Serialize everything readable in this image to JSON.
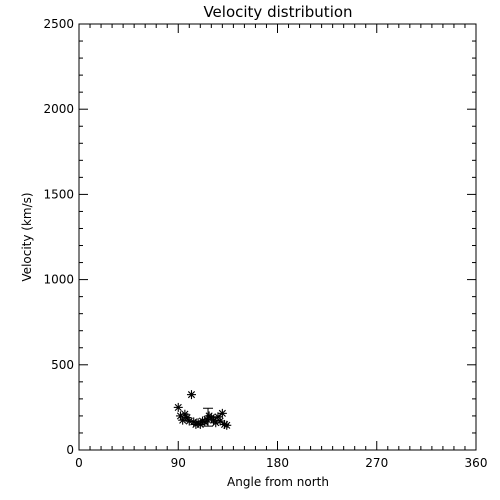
{
  "chart_data": {
    "type": "scatter",
    "title": "Velocity distribution",
    "xlabel": "Angle from north",
    "ylabel": "Velocity (km/s)",
    "xlim": [
      0,
      360
    ],
    "ylim": [
      0,
      2500
    ],
    "xticks": [
      0,
      90,
      180,
      270,
      360
    ],
    "yticks": [
      0,
      500,
      1000,
      1500,
      2000,
      2500
    ],
    "x_minor_step": 10,
    "y_minor_step": 100,
    "grid": false,
    "legend": "none",
    "marker": "asterisk",
    "points": [
      {
        "x": 90,
        "y": 250
      },
      {
        "x": 92,
        "y": 200
      },
      {
        "x": 94,
        "y": 175
      },
      {
        "x": 96,
        "y": 210
      },
      {
        "x": 98,
        "y": 190
      },
      {
        "x": 100,
        "y": 170
      },
      {
        "x": 102,
        "y": 325
      },
      {
        "x": 104,
        "y": 165
      },
      {
        "x": 106,
        "y": 150
      },
      {
        "x": 108,
        "y": 160
      },
      {
        "x": 110,
        "y": 150
      },
      {
        "x": 112,
        "y": 170
      },
      {
        "x": 114,
        "y": 165
      },
      {
        "x": 116,
        "y": 180
      },
      {
        "x": 118,
        "y": 200
      },
      {
        "x": 120,
        "y": 190
      },
      {
        "x": 122,
        "y": 175
      },
      {
        "x": 124,
        "y": 160
      },
      {
        "x": 126,
        "y": 195
      },
      {
        "x": 128,
        "y": 170
      },
      {
        "x": 130,
        "y": 215
      },
      {
        "x": 132,
        "y": 150
      },
      {
        "x": 134,
        "y": 145
      }
    ],
    "errorbars": [
      {
        "x": 117,
        "ylow": 140,
        "yhigh": 245
      }
    ]
  }
}
